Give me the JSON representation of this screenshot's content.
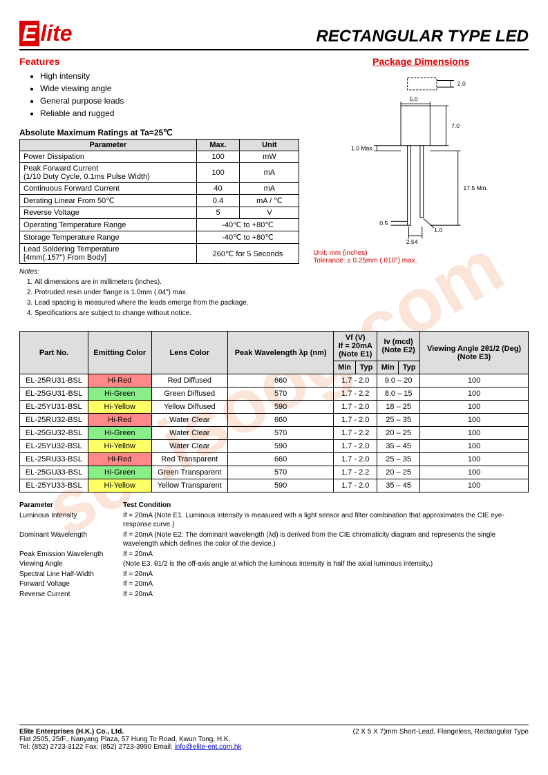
{
  "logo": {
    "e": "E",
    "rest": "lite"
  },
  "title": "RECTANGULAR  TYPE  LED",
  "features": {
    "heading": "Features",
    "items": [
      "High intensity",
      "Wide viewing angle",
      "General purpose leads",
      "Reliable and rugged"
    ]
  },
  "pkg_heading": "Package Dimensions",
  "ratings": {
    "heading": "Absolute Maximum Ratings at Ta=25℃",
    "cols": [
      "Parameter",
      "Max.",
      "Unit"
    ],
    "rows": [
      [
        "Power Dissipation",
        "100",
        "mW"
      ],
      [
        "Peak Forward Current\n(1/10 Duty Cycle, 0.1ms Pulse Width)",
        "100",
        "mA"
      ],
      [
        "Continuous Forward Current",
        "40",
        "mA"
      ],
      [
        "Derating Linear From 50℃",
        "0.4",
        "mA / ℃"
      ],
      [
        "Reverse Voltage",
        "5",
        "V"
      ],
      [
        "Operating Temperature Range",
        "-40℃  to +80℃",
        ""
      ],
      [
        "Storage Temperature Range",
        "-40℃  to +80℃",
        ""
      ],
      [
        "Lead Soldering Temperature\n[4mm(.157\") From Body]",
        "260℃  for 5 Seconds",
        ""
      ]
    ]
  },
  "notes": {
    "heading": "Notes:",
    "items": [
      "All dimensions are in millimeters (inches).",
      "Protruded resin under flange is 1.0mm (.04\") max.",
      "Lead spacing is measured where the leads emerge from the package.",
      "Specifications are subject to change without notice."
    ]
  },
  "unit_note": {
    "l1": "Unit: mm (inches)",
    "l2": "Tolerance: ± 0.25mm (.010\") max."
  },
  "dims": {
    "top_w": "2.0",
    "body_w": "5.0",
    "body_h": "7.0",
    "left_max": "1.0 Max.",
    "lead_min": "17.5 Min.",
    "stub": "0.5",
    "pitch": "2.54",
    "small": "1.0",
    "color_body": "#ffffff",
    "color_line": "#000000",
    "font": 9
  },
  "parts": {
    "headers": {
      "part": "Part No.",
      "color": "Emitting Color",
      "lens": "Lens Color",
      "peak": "Peak Wavelength λp (nm)",
      "vf": "Vf (V)\nIf = 20mA\n(Note E1)",
      "iv": "Iv (mcd)\n(Note E2)",
      "angle": "Viewing Angle 2θ1/2 (Deg)\n(Note E3)",
      "min": "Min",
      "typ": "Typ"
    },
    "rows": [
      {
        "pn": "EL-25RU31-BSL",
        "ec": "Hi-Red",
        "ecc": "hi-red",
        "lens": "Red Diffused",
        "wl": "660",
        "vf": "1.7 - 2.0",
        "iv": "9.0 – 20",
        "ang": "100"
      },
      {
        "pn": "EL-25GU31-BSL",
        "ec": "Hi-Green",
        "ecc": "hi-green",
        "lens": "Green Diffused",
        "wl": "570",
        "vf": "1.7 - 2.2",
        "iv": "8.0 – 15",
        "ang": "100"
      },
      {
        "pn": "EL-25YU31-BSL",
        "ec": "Hi-Yellow",
        "ecc": "hi-yellow",
        "lens": "Yellow Diffused",
        "wl": "590",
        "vf": "1.7 - 2.0",
        "iv": "18 – 25",
        "ang": "100"
      },
      {
        "pn": "EL-25RU32-BSL",
        "ec": "Hi-Red",
        "ecc": "hi-red",
        "lens": "Water Clear",
        "wl": "660",
        "vf": "1.7 - 2.0",
        "iv": "25 – 35",
        "ang": "100"
      },
      {
        "pn": "EL-25GU32-BSL",
        "ec": "Hi-Green",
        "ecc": "hi-green",
        "lens": "Water Clear",
        "wl": "570",
        "vf": "1.7 - 2.2",
        "iv": "20 – 25",
        "ang": "100"
      },
      {
        "pn": "EL-25YU32-BSL",
        "ec": "Hi-Yellow",
        "ecc": "hi-yellow",
        "lens": "Water Clear",
        "wl": "590",
        "vf": "1.7 - 2.0",
        "iv": "35 – 45",
        "ang": "100"
      },
      {
        "pn": "EL-25RU33-BSL",
        "ec": "Hi-Red",
        "ecc": "hi-red",
        "lens": "Red Transparent",
        "wl": "660",
        "vf": "1.7 - 2.0",
        "iv": "25 – 35",
        "ang": "100"
      },
      {
        "pn": "EL-25GU33-BSL",
        "ec": "Hi-Green",
        "ecc": "hi-green",
        "lens": "Green Transparent",
        "wl": "570",
        "vf": "1.7 - 2.2",
        "iv": "20 – 25",
        "ang": "100"
      },
      {
        "pn": "EL-25YU33-BSL",
        "ec": "Hi-Yellow",
        "ecc": "hi-yellow",
        "lens": "Yellow Transparent",
        "wl": "590",
        "vf": "1.7 - 2.0",
        "iv": "35 – 45",
        "ang": "100"
      }
    ]
  },
  "test_conditions": {
    "h1": "Parameter",
    "h2": "Test Condition",
    "rows": [
      [
        "Luminous Intensity",
        "If = 20mA (Note E1. Luminous intensity is measured with a light sensor and filter combination that approximates the CIE eye-response curve.)"
      ],
      [
        "Dominant Wavelength",
        "If = 20mA (Note E2: The dominant wavelength (λd) is derived from the CIE chromaticity diagram and represents the single wavelength which defines the color of the device.)"
      ],
      [
        "Peak Emission Wavelength",
        "If = 20mA"
      ],
      [
        "Viewing Angle",
        "(Note E3.  θ1/2 is the off-axis angle at which the luminous intensity is half the axial luminous intensity.)"
      ],
      [
        "Spectral Line Half-Width",
        "If = 20mA"
      ],
      [
        "Forward Voltage",
        "If = 20mA"
      ],
      [
        "Reverse Current",
        "If = 20mA"
      ]
    ]
  },
  "footer": {
    "company": "Elite Enterprises (H.K.) Co., Ltd.",
    "addr": "Flat 2505, 25/F., Nanyang Plaza, 57 Hung To Road, Kwun Tong, H.K.",
    "contact": "Tel: (852) 2723-3122    Fax: (852) 2723-3990    Email: ",
    "email": "info@elite-ent.com.hk",
    "right": "(2 X 5 X 7)mm Short-Lead, Flangeless, Rectangular Type"
  },
  "watermark": "ser.isoog.com"
}
